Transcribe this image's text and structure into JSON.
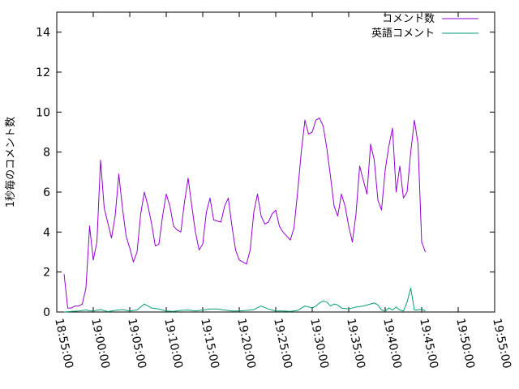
{
  "chart_data": {
    "type": "line",
    "ylabel": "1秒毎のコメント数",
    "xlabel": "",
    "ylim": [
      0,
      15
    ],
    "xlim": [
      "18:55:00",
      "19:55:00"
    ],
    "y_ticks": [
      0,
      2,
      4,
      6,
      8,
      10,
      12,
      14
    ],
    "x_ticks": [
      "18:55:00",
      "19:00:00",
      "19:05:00",
      "19:10:00",
      "19:15:00",
      "19:20:00",
      "19:25:00",
      "19:30:00",
      "19:35:00",
      "19:40:00",
      "19:45:00",
      "19:50:00",
      "19:55:00"
    ],
    "legend_position": "top-right",
    "grid": false,
    "series": [
      {
        "name": "コメント数",
        "color": "#9400d3",
        "points": [
          [
            "18:56:00",
            1.9
          ],
          [
            "18:56:30",
            0.2
          ],
          [
            "18:57:00",
            0.2
          ],
          [
            "18:57:30",
            0.3
          ],
          [
            "18:58:00",
            0.3
          ],
          [
            "18:58:30",
            0.4
          ],
          [
            "18:59:00",
            1.2
          ],
          [
            "18:59:30",
            4.3
          ],
          [
            "19:00:00",
            2.6
          ],
          [
            "19:00:30",
            3.5
          ],
          [
            "19:01:00",
            7.6
          ],
          [
            "19:01:30",
            5.2
          ],
          [
            "19:02:30",
            3.7
          ],
          [
            "19:03:00",
            4.8
          ],
          [
            "19:03:30",
            6.9
          ],
          [
            "19:04:00",
            5.2
          ],
          [
            "19:04:30",
            3.8
          ],
          [
            "19:05:00",
            3.2
          ],
          [
            "19:05:30",
            2.5
          ],
          [
            "19:06:00",
            3.0
          ],
          [
            "19:06:30",
            4.9
          ],
          [
            "19:07:00",
            6.0
          ],
          [
            "19:07:30",
            5.3
          ],
          [
            "19:08:00",
            4.4
          ],
          [
            "19:08:30",
            3.3
          ],
          [
            "19:09:00",
            3.4
          ],
          [
            "19:09:30",
            4.8
          ],
          [
            "19:10:00",
            5.9
          ],
          [
            "19:10:30",
            5.3
          ],
          [
            "19:11:00",
            4.3
          ],
          [
            "19:11:30",
            4.1
          ],
          [
            "19:12:00",
            4.0
          ],
          [
            "19:12:30",
            5.5
          ],
          [
            "19:13:00",
            6.7
          ],
          [
            "19:13:30",
            5.3
          ],
          [
            "19:14:00",
            4.0
          ],
          [
            "19:14:30",
            3.1
          ],
          [
            "19:15:00",
            3.4
          ],
          [
            "19:15:30",
            5.0
          ],
          [
            "19:16:00",
            5.7
          ],
          [
            "19:16:30",
            4.6
          ],
          [
            "19:17:30",
            4.5
          ],
          [
            "19:18:00",
            5.3
          ],
          [
            "19:18:30",
            5.7
          ],
          [
            "19:19:00",
            4.3
          ],
          [
            "19:19:30",
            3.1
          ],
          [
            "19:20:00",
            2.6
          ],
          [
            "19:20:30",
            2.5
          ],
          [
            "19:21:00",
            2.4
          ],
          [
            "19:21:30",
            3.1
          ],
          [
            "19:22:00",
            5.0
          ],
          [
            "19:22:30",
            5.9
          ],
          [
            "19:23:00",
            4.8
          ],
          [
            "19:23:30",
            4.4
          ],
          [
            "19:24:00",
            4.5
          ],
          [
            "19:24:30",
            4.9
          ],
          [
            "19:25:00",
            5.1
          ],
          [
            "19:25:30",
            4.3
          ],
          [
            "19:26:00",
            4.0
          ],
          [
            "19:27:00",
            3.6
          ],
          [
            "19:27:30",
            4.2
          ],
          [
            "19:28:00",
            6.0
          ],
          [
            "19:28:30",
            8.0
          ],
          [
            "19:29:00",
            9.6
          ],
          [
            "19:29:30",
            8.9
          ],
          [
            "19:30:00",
            9.0
          ],
          [
            "19:30:30",
            9.6
          ],
          [
            "19:31:00",
            9.7
          ],
          [
            "19:31:30",
            9.3
          ],
          [
            "19:32:00",
            8.2
          ],
          [
            "19:32:30",
            6.8
          ],
          [
            "19:33:00",
            5.3
          ],
          [
            "19:33:30",
            4.8
          ],
          [
            "19:34:00",
            5.9
          ],
          [
            "19:34:30",
            5.3
          ],
          [
            "19:35:00",
            4.3
          ],
          [
            "19:35:30",
            3.5
          ],
          [
            "19:36:00",
            4.9
          ],
          [
            "19:36:30",
            7.3
          ],
          [
            "19:37:00",
            6.6
          ],
          [
            "19:37:30",
            5.9
          ],
          [
            "19:38:00",
            8.4
          ],
          [
            "19:38:30",
            7.6
          ],
          [
            "19:39:00",
            5.6
          ],
          [
            "19:39:30",
            5.1
          ],
          [
            "19:40:00",
            7.1
          ],
          [
            "19:40:30",
            8.3
          ],
          [
            "19:41:00",
            9.2
          ],
          [
            "19:41:30",
            6.0
          ],
          [
            "19:42:00",
            7.3
          ],
          [
            "19:42:30",
            5.7
          ],
          [
            "19:43:00",
            6.0
          ],
          [
            "19:43:30",
            8.0
          ],
          [
            "19:44:00",
            9.6
          ],
          [
            "19:44:30",
            8.4
          ],
          [
            "19:45:00",
            3.5
          ],
          [
            "19:45:30",
            3.0
          ]
        ]
      },
      {
        "name": "英語コメント",
        "color": "#009e73",
        "points": [
          [
            "18:56:00",
            0.0
          ],
          [
            "18:57:00",
            0.03
          ],
          [
            "18:58:00",
            0.05
          ],
          [
            "18:59:00",
            0.1
          ],
          [
            "18:59:30",
            0.06
          ],
          [
            "19:00:00",
            0.05
          ],
          [
            "19:01:00",
            0.12
          ],
          [
            "19:02:00",
            0.02
          ],
          [
            "19:03:00",
            0.08
          ],
          [
            "19:04:00",
            0.12
          ],
          [
            "19:05:00",
            0.05
          ],
          [
            "19:06:00",
            0.1
          ],
          [
            "19:07:00",
            0.4
          ],
          [
            "19:07:30",
            0.3
          ],
          [
            "19:08:00",
            0.2
          ],
          [
            "19:09:00",
            0.15
          ],
          [
            "19:10:00",
            0.05
          ],
          [
            "19:11:00",
            0.03
          ],
          [
            "19:12:00",
            0.08
          ],
          [
            "19:13:00",
            0.1
          ],
          [
            "19:14:00",
            0.05
          ],
          [
            "19:15:00",
            0.1
          ],
          [
            "19:16:00",
            0.15
          ],
          [
            "19:17:00",
            0.15
          ],
          [
            "19:18:00",
            0.1
          ],
          [
            "19:19:00",
            0.05
          ],
          [
            "19:20:00",
            0.05
          ],
          [
            "19:21:00",
            0.08
          ],
          [
            "19:22:00",
            0.12
          ],
          [
            "19:23:00",
            0.3
          ],
          [
            "19:24:00",
            0.15
          ],
          [
            "19:25:00",
            0.05
          ],
          [
            "19:26:00",
            0.05
          ],
          [
            "19:27:00",
            0.03
          ],
          [
            "19:28:00",
            0.08
          ],
          [
            "19:29:00",
            0.3
          ],
          [
            "19:29:30",
            0.25
          ],
          [
            "19:30:00",
            0.2
          ],
          [
            "19:30:30",
            0.3
          ],
          [
            "19:31:00",
            0.45
          ],
          [
            "19:31:30",
            0.55
          ],
          [
            "19:32:00",
            0.5
          ],
          [
            "19:32:30",
            0.3
          ],
          [
            "19:33:00",
            0.4
          ],
          [
            "19:33:30",
            0.35
          ],
          [
            "19:34:00",
            0.2
          ],
          [
            "19:35:00",
            0.15
          ],
          [
            "19:36:00",
            0.25
          ],
          [
            "19:37:00",
            0.3
          ],
          [
            "19:38:00",
            0.4
          ],
          [
            "19:38:30",
            0.45
          ],
          [
            "19:39:00",
            0.35
          ],
          [
            "19:39:30",
            0.1
          ],
          [
            "19:40:00",
            0.05
          ],
          [
            "19:40:30",
            0.2
          ],
          [
            "19:41:00",
            0.1
          ],
          [
            "19:41:30",
            0.25
          ],
          [
            "19:42:00",
            0.1
          ],
          [
            "19:42:30",
            0.05
          ],
          [
            "19:43:00",
            0.5
          ],
          [
            "19:43:30",
            1.2
          ],
          [
            "19:44:00",
            0.1
          ],
          [
            "19:44:30",
            0.1
          ],
          [
            "19:45:00",
            0.15
          ],
          [
            "19:45:30",
            0.05
          ]
        ]
      }
    ]
  }
}
